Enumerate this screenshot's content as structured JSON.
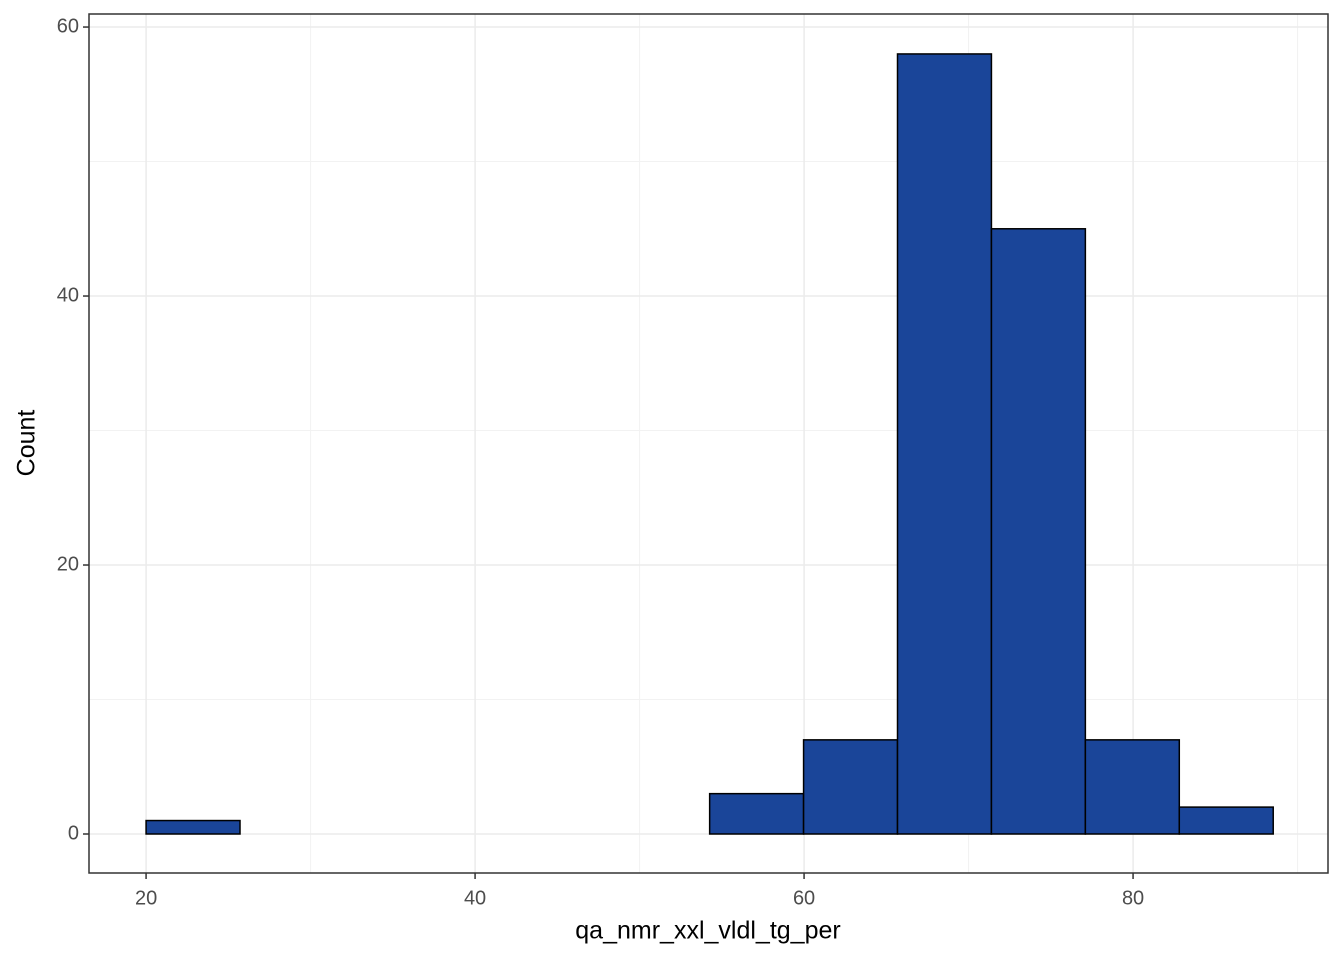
{
  "chart_data": {
    "type": "histogram",
    "xlabel": "qa_nmr_xxl_vldl_tg_per",
    "ylabel": "Count",
    "bins": [
      20,
      25.71,
      31.42,
      37.13,
      42.84,
      48.55,
      54.26,
      59.97,
      65.68,
      71.39,
      77.1,
      82.81,
      88.52
    ],
    "values": [
      1,
      0,
      0,
      0,
      0,
      0,
      3,
      7,
      58,
      45,
      7,
      2
    ],
    "color": "#1a4599",
    "edgecolor": "#000000",
    "xlim": [
      16.53,
      91.85
    ],
    "ylim": [
      -2.9,
      60.97
    ],
    "xticks": [
      20,
      40,
      60,
      80
    ],
    "yticks": [
      0,
      20,
      40,
      60
    ],
    "xminor": [
      30,
      50,
      70,
      90
    ],
    "yminor": [
      10,
      30,
      50
    ],
    "grid": true
  }
}
